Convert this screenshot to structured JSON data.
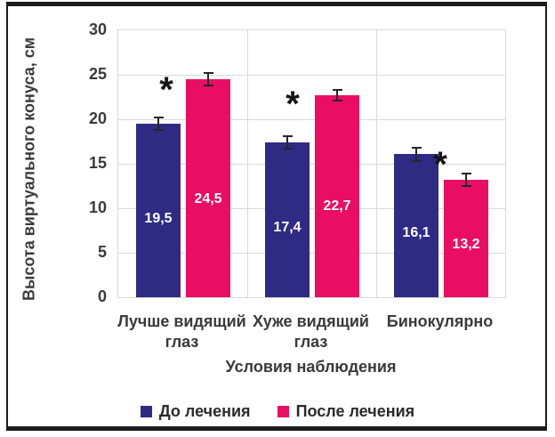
{
  "chart_data": {
    "type": "bar",
    "title": "",
    "categories": [
      "Лучше видящий глаз",
      "Хуже видящий глаз",
      "Бинокулярно"
    ],
    "series": [
      {
        "name": "До лечения",
        "color": "#2f2b85",
        "values": [
          19.5,
          17.4,
          16.1
        ],
        "value_labels": [
          "19,5",
          "17,4",
          "16,1"
        ],
        "errors": [
          0.8,
          0.8,
          0.85
        ]
      },
      {
        "name": "После лечения",
        "color": "#e90e63",
        "values": [
          24.5,
          22.7,
          13.2
        ],
        "value_labels": [
          "24,5",
          "22,7",
          "13,2"
        ],
        "errors": [
          0.8,
          0.7,
          0.8
        ]
      }
    ],
    "xlabel": "Условия наблюдения",
    "ylabel": "Высота виртуального конуса, см",
    "ylim": [
      0,
      30
    ],
    "yticks": [
      0,
      5,
      10,
      15,
      20,
      25,
      30
    ],
    "grid": true,
    "legend_position": "bottom",
    "annotations": [
      {
        "text": "*",
        "group": 0,
        "y": 23.6
      },
      {
        "text": "*",
        "group": 1,
        "y": 22.0
      },
      {
        "text": "*",
        "group": 2,
        "y": 15.2
      }
    ],
    "gridline_color": "#d9d9d9",
    "error_bar_color": "#262626"
  }
}
